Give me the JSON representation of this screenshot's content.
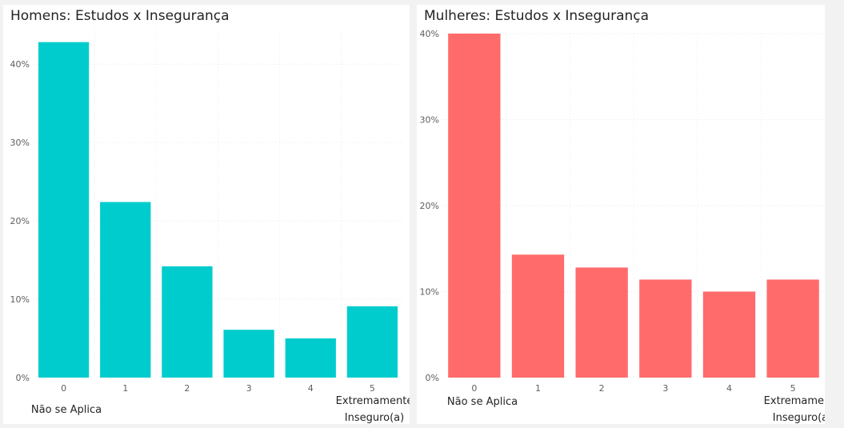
{
  "chart_data": [
    {
      "type": "bar",
      "title": "Homens: Estudos x Insegurança",
      "categories": [
        "0",
        "1",
        "2",
        "3",
        "4",
        "5"
      ],
      "values": [
        42.8,
        22.4,
        14.2,
        6.1,
        5.0,
        9.1
      ],
      "ylim": [
        0,
        44.5
      ],
      "yticks": [
        0,
        10,
        20,
        30,
        40
      ],
      "ytick_labels": [
        "0%",
        "10%",
        "20%",
        "30%",
        "40%"
      ],
      "color": "#00ccce",
      "grid": true,
      "low_label": "Não se Aplica",
      "high_label": [
        "Extremamente",
        "Inseguro(a)"
      ]
    },
    {
      "type": "bar",
      "title": "Mulheres: Estudos x Insegurança",
      "categories": [
        "0",
        "1",
        "2",
        "3",
        "4",
        "5"
      ],
      "values": [
        40.0,
        14.3,
        12.8,
        11.4,
        10.0,
        11.4
      ],
      "ylim": [
        0,
        40
      ],
      "yticks": [
        0,
        10,
        20,
        30,
        40
      ],
      "ytick_labels": [
        "0%",
        "10%",
        "20%",
        "30%",
        "40%"
      ],
      "color": "#ff6b6b",
      "grid": true,
      "low_label": "Não se Aplica",
      "high_label": [
        "Extremamente",
        "Inseguro(a)"
      ]
    }
  ]
}
